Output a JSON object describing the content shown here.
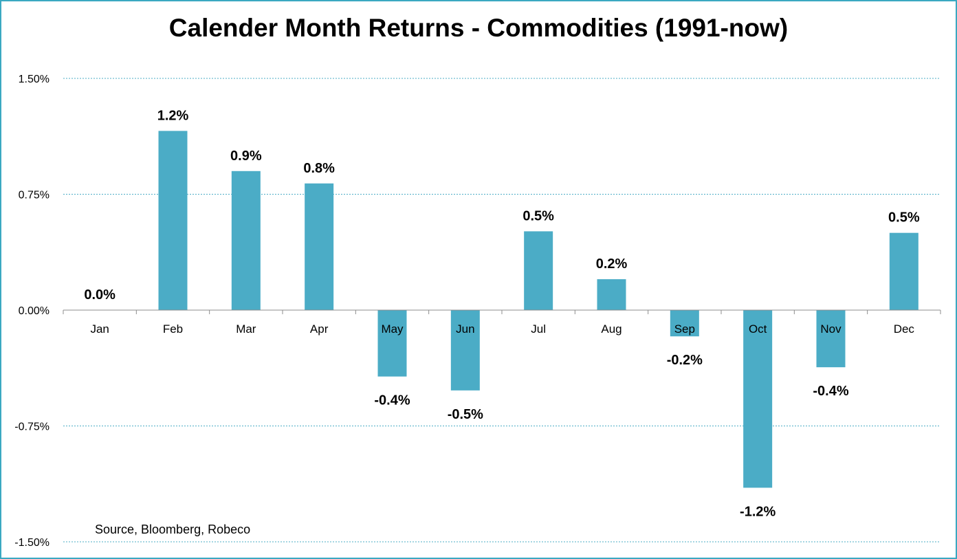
{
  "chart_data": {
    "type": "bar",
    "title": "Calender Month Returns - Commodities (1991-now)",
    "xlabel": "",
    "ylabel": "",
    "categories": [
      "Jan",
      "Feb",
      "Mar",
      "Apr",
      "May",
      "Jun",
      "Jul",
      "Aug",
      "Sep",
      "Oct",
      "Nov",
      "Dec"
    ],
    "values": [
      0.0,
      1.16,
      0.9,
      0.82,
      -0.43,
      -0.52,
      0.51,
      0.2,
      -0.17,
      -1.15,
      -0.37,
      0.5
    ],
    "data_labels": [
      "0.0%",
      "1.2%",
      "0.9%",
      "0.8%",
      "-0.4%",
      "-0.5%",
      "0.5%",
      "0.2%",
      "-0.2%",
      "-1.2%",
      "-0.4%",
      "0.5%"
    ],
    "ylim": [
      -1.5,
      1.5
    ],
    "yticks": [
      1.5,
      0.75,
      0.0,
      -0.75,
      -1.5
    ],
    "ytick_labels": [
      "1.50%",
      "0.75%",
      "0.00%",
      "-0.75%",
      "-1.50%"
    ],
    "grid": true,
    "legend": "none",
    "bar_color": "#4bacc6",
    "grid_color": "#4bacc6",
    "frame_color": "#3aa8c1"
  },
  "annotations": {
    "source": "Source, Bloomberg, Robeco"
  }
}
